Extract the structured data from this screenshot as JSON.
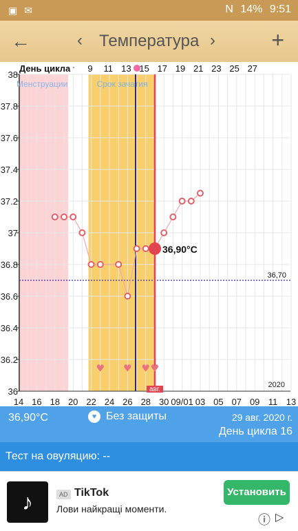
{
  "status": {
    "left_icons": [
      "image-icon",
      "mail-icon"
    ],
    "signal": "N",
    "battery": "14%",
    "time": "9:51"
  },
  "appbar": {
    "back": "←",
    "prev": "‹",
    "title": "Температура",
    "next": "›",
    "add": "+"
  },
  "chart_data": {
    "type": "line",
    "cycle_label": "День цикла",
    "cycle_ticks": [
      "9",
      "11",
      "13",
      "15",
      "17",
      "19",
      "21",
      "23",
      "25",
      "27"
    ],
    "date_ticks": [
      "14",
      "16",
      "18",
      "20",
      "22",
      "24",
      "26",
      "28",
      "30",
      "09/01",
      "03",
      "05",
      "07",
      "09",
      "11",
      "13"
    ],
    "y_ticks": [
      "38",
      "37.8",
      "37.6",
      "37.4",
      "37.2",
      "37",
      "36.8",
      "36.6",
      "36.4",
      "36.2",
      "36"
    ],
    "ylim": [
      36.0,
      38.0
    ],
    "year_label": "2020",
    "coverline_label": "36,70",
    "coverline": 36.7,
    "menstruation_label": "Менструации",
    "fertile_label": "Срок зачатия",
    "ovulation_tag": "авг.",
    "selected_label": "36,90°C",
    "selected": {
      "date": "29 авг. 2020",
      "value": 36.9
    },
    "series": [
      {
        "values": [
          {
            "x": "2020-08-18",
            "y": 37.1
          },
          {
            "x": "2020-08-19",
            "y": 37.1
          },
          {
            "x": "2020-08-20",
            "y": 37.1
          },
          {
            "x": "2020-08-21",
            "y": 37.0
          },
          {
            "x": "2020-08-22",
            "y": 36.8
          },
          {
            "x": "2020-08-23",
            "y": 36.8
          },
          {
            "x": "2020-08-25",
            "y": 36.8
          },
          {
            "x": "2020-08-26",
            "y": 36.6
          },
          {
            "x": "2020-08-27",
            "y": 36.9
          },
          {
            "x": "2020-08-28",
            "y": 36.9
          },
          {
            "x": "2020-08-29",
            "y": 36.9
          },
          {
            "x": "2020-08-30",
            "y": 37.0
          },
          {
            "x": "2020-08-31",
            "y": 37.1
          },
          {
            "x": "2020-09-01",
            "y": 37.2
          },
          {
            "x": "2020-09-02",
            "y": 37.2
          },
          {
            "x": "2020-09-03",
            "y": 37.25
          }
        ]
      }
    ],
    "hearts": [
      "2020-08-23",
      "2020-08-26",
      "2020-08-28",
      "2020-08-29"
    ],
    "colors": {
      "point": "#e2606a",
      "selected": "#e2434f",
      "menstruation": "#fcd4d6",
      "fertile": "#f9cf6b",
      "coverline": "#3a2aa8"
    }
  },
  "summary": {
    "temp": "36,90°C",
    "protection": "Без защиты",
    "date": "29 авг. 2020 г.",
    "cycle_day": "День цикла 16"
  },
  "ovulation_test": "Тест на овуляцию: --",
  "ad": {
    "tag": "AD",
    "name": "TikTok",
    "desc": "Лови найкращі моменти.",
    "install": "Установить"
  }
}
